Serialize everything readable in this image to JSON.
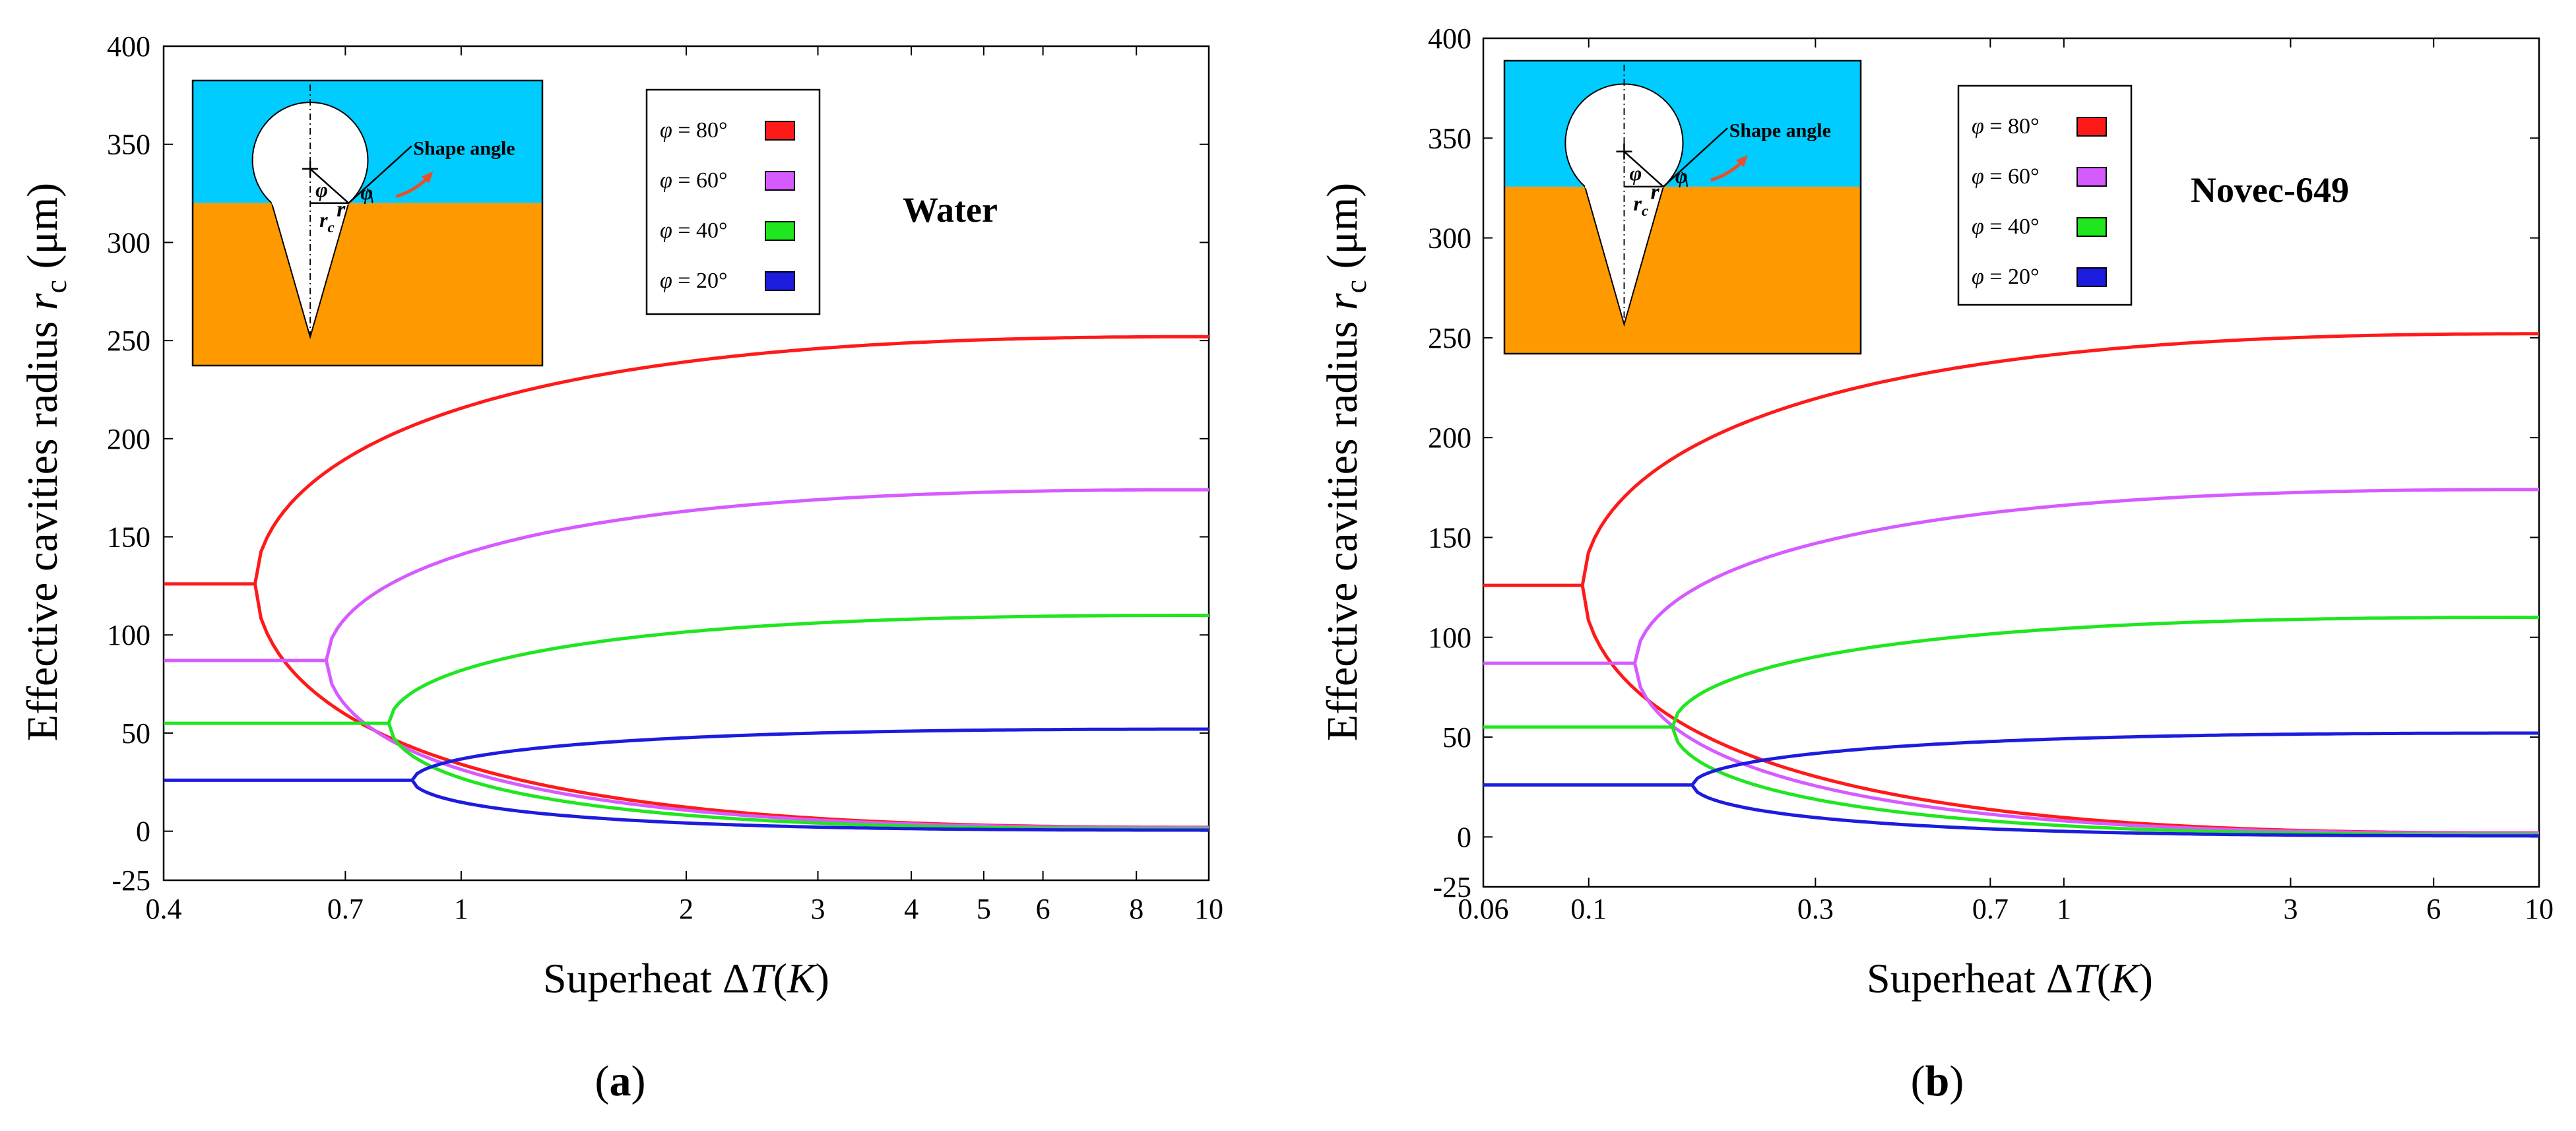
{
  "colors": {
    "red": "#ff1a1a",
    "magenta": "#d65bff",
    "green": "#20e620",
    "blue": "#1c1cde",
    "water_blue": "#00ccff",
    "solid_orange": "#ff9900",
    "arrow_red": "#e8502a"
  },
  "chart_data": [
    {
      "type": "line",
      "panel_label": "(a)",
      "fluid_label": "Water",
      "xlabel": "Superheat ΔT(K)",
      "ylabel": "Effective cavities radius  r_c (μm)",
      "xscale": "log",
      "xlim": [
        0.4,
        10
      ],
      "ylim": [
        -25,
        400
      ],
      "xticks": [
        0.4,
        0.7,
        1,
        2,
        3,
        4,
        5,
        6,
        8,
        10
      ],
      "xtick_labels": [
        "0.4",
        "0.7",
        "1",
        "2",
        "3",
        "4",
        "5",
        "6",
        "8",
        "10"
      ],
      "yticks": [
        -25,
        0,
        50,
        100,
        150,
        200,
        250,
        300,
        350,
        400
      ],
      "ytick_labels": [
        "-25",
        "0",
        "50",
        "100",
        "150",
        "200",
        "250",
        "300",
        "350",
        "400"
      ],
      "legend": [
        "φ = 80°",
        "φ = 60°",
        "φ = 40°",
        "φ = 20°"
      ],
      "series": [
        {
          "name": "φ = 80°",
          "onset": 0.53,
          "r_flat": 126,
          "r_max": 252
        },
        {
          "name": "φ = 60°",
          "onset": 0.66,
          "r_flat": 87,
          "r_max": 174
        },
        {
          "name": "φ = 40°",
          "onset": 0.8,
          "r_flat": 55,
          "r_max": 110
        },
        {
          "name": "φ = 20°",
          "onset": 0.86,
          "r_flat": 26,
          "r_max": 52
        }
      ],
      "inset": {
        "r_label": "r",
        "phi_label": "φ",
        "rc_label": "r_c",
        "shape_angle_label": "Shape angle"
      }
    },
    {
      "type": "line",
      "panel_label": "(b)",
      "fluid_label": "Novec-649",
      "xlabel": "Superheat ΔT(K)",
      "ylabel": "Effective cavities radius  r_c (μm)",
      "xscale": "log",
      "xlim": [
        0.06,
        10
      ],
      "ylim": [
        -25,
        400
      ],
      "xticks": [
        0.06,
        0.1,
        0.3,
        0.7,
        1,
        3,
        6,
        10
      ],
      "xtick_labels": [
        "0.06",
        "0.1",
        "0.3",
        "0.7",
        "1",
        "3",
        "6",
        "10"
      ],
      "yticks": [
        -25,
        0,
        50,
        100,
        150,
        200,
        250,
        300,
        350,
        400
      ],
      "ytick_labels": [
        "-25",
        "0",
        "50",
        "100",
        "150",
        "200",
        "250",
        "300",
        "350",
        "400"
      ],
      "legend": [
        "φ = 80°",
        "φ = 60°",
        "φ = 40°",
        "φ = 20°"
      ],
      "series": [
        {
          "name": "φ = 80°",
          "onset": 0.097,
          "r_flat": 126,
          "r_max": 252
        },
        {
          "name": "φ = 60°",
          "onset": 0.125,
          "r_flat": 87,
          "r_max": 174
        },
        {
          "name": "φ = 40°",
          "onset": 0.15,
          "r_flat": 55,
          "r_max": 110
        },
        {
          "name": "φ = 20°",
          "onset": 0.165,
          "r_flat": 26,
          "r_max": 52
        }
      ],
      "inset": {
        "r_label": "r",
        "phi_label": "φ",
        "rc_label": "r_c",
        "shape_angle_label": "Shape angle"
      }
    }
  ]
}
